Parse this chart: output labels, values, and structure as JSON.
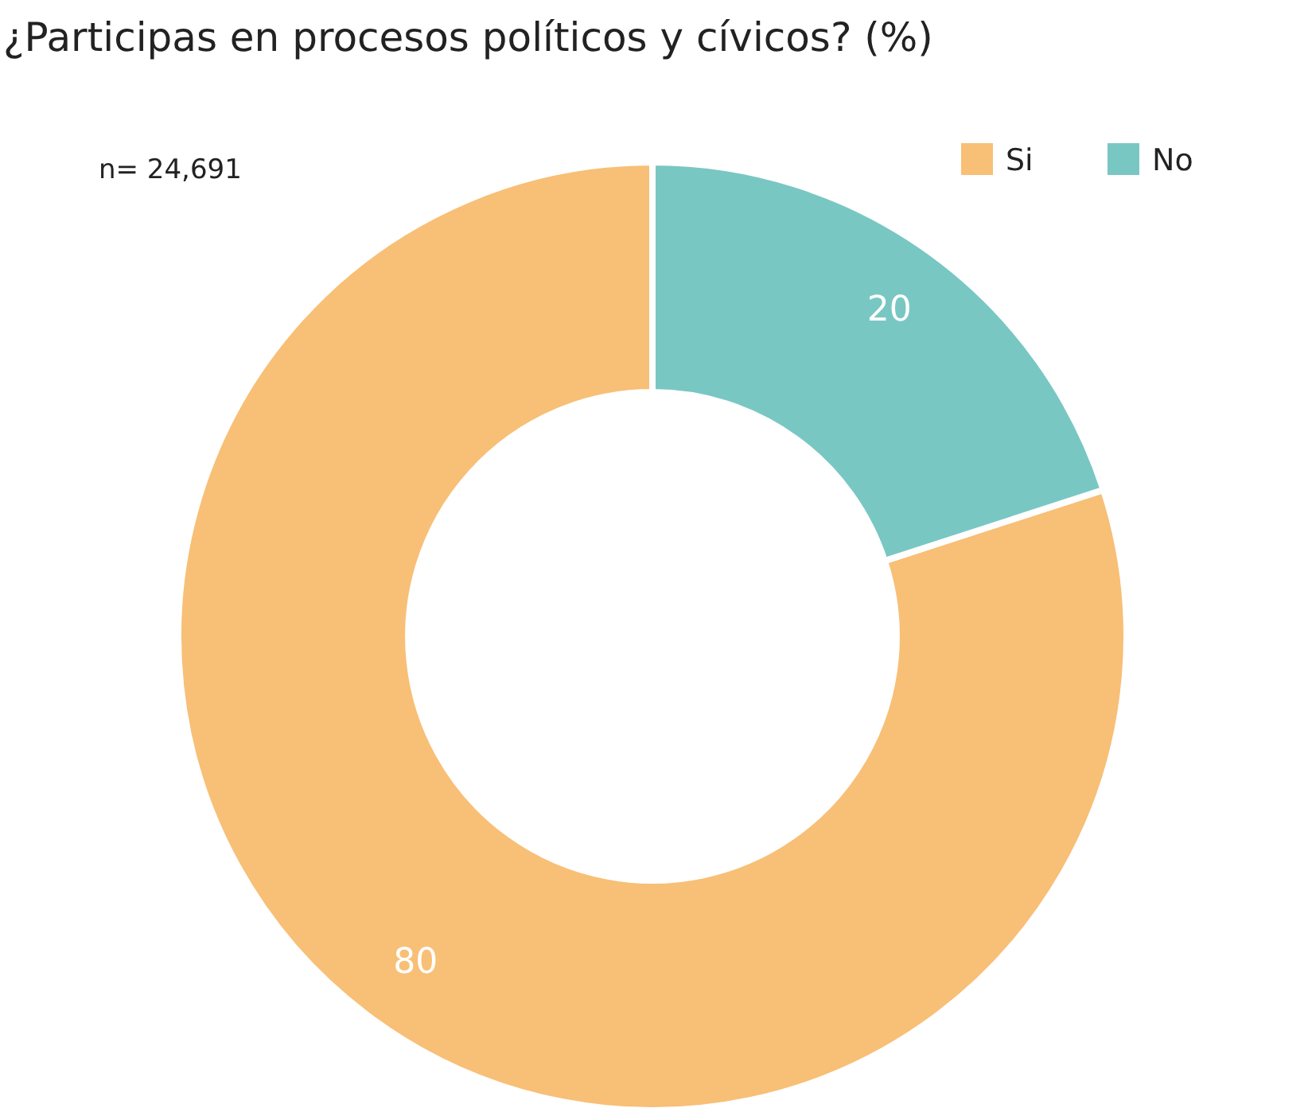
{
  "chart_data": {
    "type": "donut",
    "title": "¿Participas en procesos políticos y cívicos?  (%)",
    "annotations": [
      "n= 24,691"
    ],
    "categories": [
      "Si",
      "No"
    ],
    "values": [
      80,
      20
    ],
    "colors": [
      "#f8bf76",
      "#79c7c3"
    ],
    "data_labels": true,
    "legend": "top right"
  }
}
